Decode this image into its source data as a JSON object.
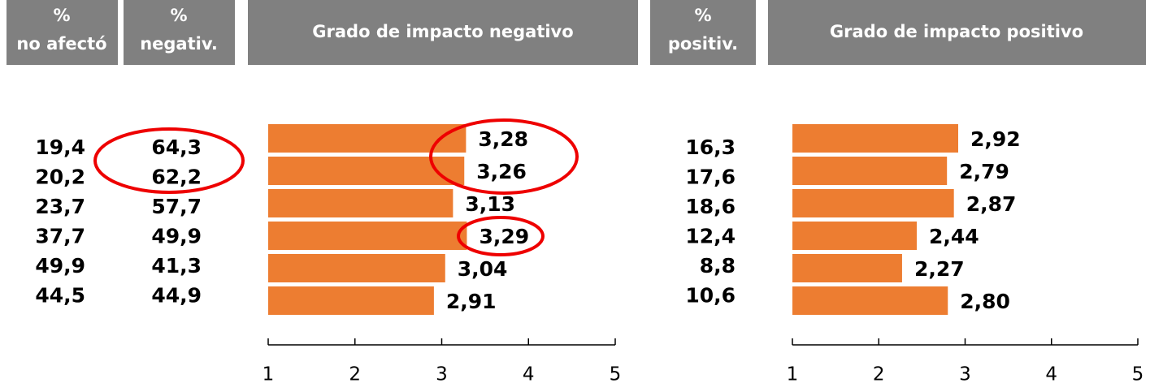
{
  "columns": [
    {
      "header": [
        "%",
        "no afectó"
      ],
      "values": [
        "19,4",
        "20,2",
        "23,7",
        "37,7",
        "49,9",
        "44,5"
      ]
    },
    {
      "header": [
        "%",
        "negativ."
      ],
      "values": [
        "64,3",
        "62,2",
        "57,7",
        "49,9",
        "41,3",
        "44,9"
      ]
    },
    {
      "header": [
        "%",
        "positiv."
      ],
      "values": [
        "16,3",
        "17,6",
        "18,6",
        "12,4",
        "8,8",
        "10,6"
      ]
    }
  ],
  "chart_data": [
    {
      "type": "bar",
      "orientation": "horizontal",
      "title": "Grado de impacto negativo",
      "color": "#ed7d31",
      "values": [
        3.28,
        3.26,
        3.13,
        3.29,
        3.04,
        2.91
      ],
      "value_labels": [
        "3,28",
        "3,26",
        "3,13",
        "3,29",
        "3,04",
        "2,91"
      ],
      "xlim": [
        1,
        5
      ],
      "xticks": [
        1,
        2,
        3,
        4,
        5
      ]
    },
    {
      "type": "bar",
      "orientation": "horizontal",
      "title": "Grado de impacto positivo",
      "color": "#ed7d31",
      "values": [
        2.92,
        2.79,
        2.87,
        2.44,
        2.27,
        2.8
      ],
      "value_labels": [
        "2,92",
        "2,79",
        "2,87",
        "2,44",
        "2,27",
        "2,80"
      ],
      "xlim": [
        1,
        5
      ],
      "xticks": [
        1,
        2,
        3,
        4,
        5
      ]
    }
  ]
}
